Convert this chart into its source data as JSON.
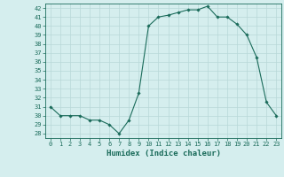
{
  "x": [
    0,
    1,
    2,
    3,
    4,
    5,
    6,
    7,
    8,
    9,
    10,
    11,
    12,
    13,
    14,
    15,
    16,
    17,
    18,
    19,
    20,
    21,
    22,
    23
  ],
  "y": [
    31,
    30,
    30,
    30,
    29.5,
    29.5,
    29,
    28,
    29.5,
    32.5,
    40,
    41,
    41.2,
    41.5,
    41.8,
    41.8,
    42.2,
    41,
    41,
    40.2,
    39,
    36.5,
    31.5,
    30
  ],
  "line_color": "#1a6b5a",
  "marker": "D",
  "marker_size": 1.8,
  "bg_color": "#d5eeee",
  "grid_color": "#b8d8d8",
  "xlabel": "Humidex (Indice chaleur)",
  "xlabel_fontsize": 6.5,
  "ylim": [
    27.5,
    42.5
  ],
  "xlim": [
    -0.5,
    23.5
  ],
  "yticks": [
    28,
    29,
    30,
    31,
    32,
    33,
    34,
    35,
    36,
    37,
    38,
    39,
    40,
    41,
    42
  ],
  "xticks": [
    0,
    1,
    2,
    3,
    4,
    5,
    6,
    7,
    8,
    9,
    10,
    11,
    12,
    13,
    14,
    15,
    16,
    17,
    18,
    19,
    20,
    21,
    22,
    23
  ],
  "tick_fontsize": 5.0
}
